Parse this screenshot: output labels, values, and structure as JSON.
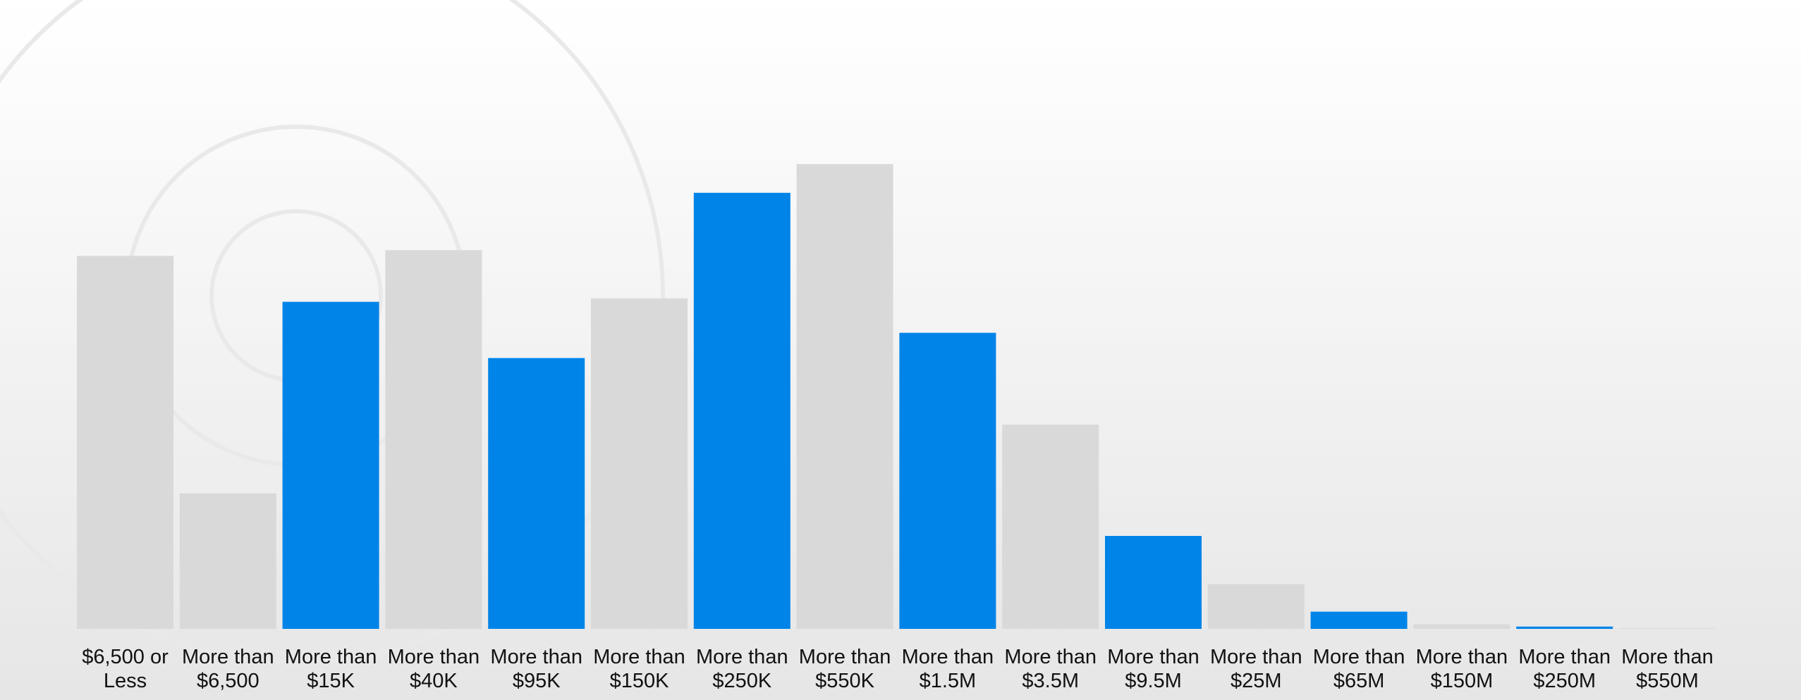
{
  "chart_data": {
    "type": "bar",
    "categories": [
      [
        "$6,500 or",
        "Less"
      ],
      [
        "More than",
        "$6,500"
      ],
      [
        "More than",
        "$15K"
      ],
      [
        "More than",
        "$40K"
      ],
      [
        "More than",
        "$95K"
      ],
      [
        "More than",
        "$150K"
      ],
      [
        "More than",
        "$250K"
      ],
      [
        "More than",
        "$550K"
      ],
      [
        "More than",
        "$1.5M"
      ],
      [
        "More than",
        "$3.5M"
      ],
      [
        "More than",
        "$9.5M"
      ],
      [
        "More than",
        "$25M"
      ],
      [
        "More than",
        "$65M"
      ],
      [
        "More than",
        "$150M"
      ],
      [
        "More than",
        "$250M"
      ],
      [
        "More than",
        "$550M"
      ]
    ],
    "values": [
      325,
      118,
      285,
      330,
      236,
      288,
      380,
      405,
      258,
      178,
      81,
      39,
      15,
      4,
      2,
      0.5
    ],
    "colors": [
      "#d9d9d9",
      "#d9d9d9",
      "#0084e8",
      "#d9d9d9",
      "#0084e8",
      "#d9d9d9",
      "#0084e8",
      "#d9d9d9",
      "#0084e8",
      "#d9d9d9",
      "#0084e8",
      "#d9d9d9",
      "#0084e8",
      "#d9d9d9",
      "#0084e8",
      "#d9d9d9"
    ],
    "ylim": [
      0,
      548
    ]
  }
}
